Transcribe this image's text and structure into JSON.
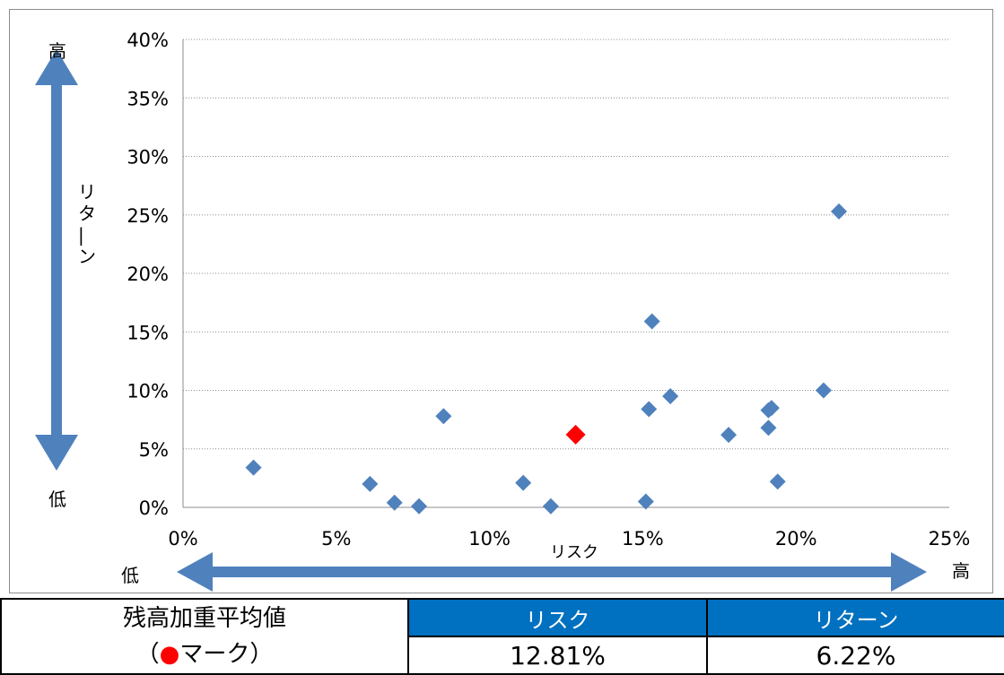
{
  "chart_data": {
    "type": "scatter",
    "xlabel": "リスク",
    "ylabel": "リターン",
    "x_low_label": "低",
    "x_high_label": "高",
    "y_low_label": "低",
    "y_high_label": "高",
    "xlim": [
      0,
      25
    ],
    "ylim": [
      0,
      40
    ],
    "x_ticks": [
      "0%",
      "5%",
      "10%",
      "15%",
      "20%",
      "25%"
    ],
    "y_ticks": [
      "0%",
      "5%",
      "10%",
      "15%",
      "20%",
      "25%",
      "30%",
      "35%",
      "40%"
    ],
    "grid": "horizontal dotted",
    "series_color": "#4f81bd",
    "highlight_color": "#ff0000",
    "points": [
      {
        "x": 2.3,
        "y": 3.4
      },
      {
        "x": 6.1,
        "y": 2.0
      },
      {
        "x": 6.9,
        "y": 0.4
      },
      {
        "x": 7.7,
        "y": 0.1
      },
      {
        "x": 8.5,
        "y": 7.8
      },
      {
        "x": 11.1,
        "y": 2.1
      },
      {
        "x": 12.0,
        "y": 0.1
      },
      {
        "x": 15.1,
        "y": 0.5
      },
      {
        "x": 15.2,
        "y": 8.4
      },
      {
        "x": 15.3,
        "y": 15.9
      },
      {
        "x": 15.9,
        "y": 9.5
      },
      {
        "x": 17.8,
        "y": 6.2
      },
      {
        "x": 19.1,
        "y": 8.3
      },
      {
        "x": 19.2,
        "y": 8.5
      },
      {
        "x": 19.1,
        "y": 6.8
      },
      {
        "x": 19.4,
        "y": 2.2
      },
      {
        "x": 20.9,
        "y": 10.0
      },
      {
        "x": 21.4,
        "y": 25.3
      }
    ],
    "highlight_point": {
      "x": 12.81,
      "y": 6.22
    }
  },
  "table": {
    "row_label_line1": "残高加重平均値",
    "row_label_line2_open": "（",
    "row_label_marker": "●",
    "row_label_line2_rest": "マーク）",
    "header_risk": "リスク",
    "header_return": "リターン",
    "risk_value": "12.81%",
    "return_value": "6.22%"
  }
}
